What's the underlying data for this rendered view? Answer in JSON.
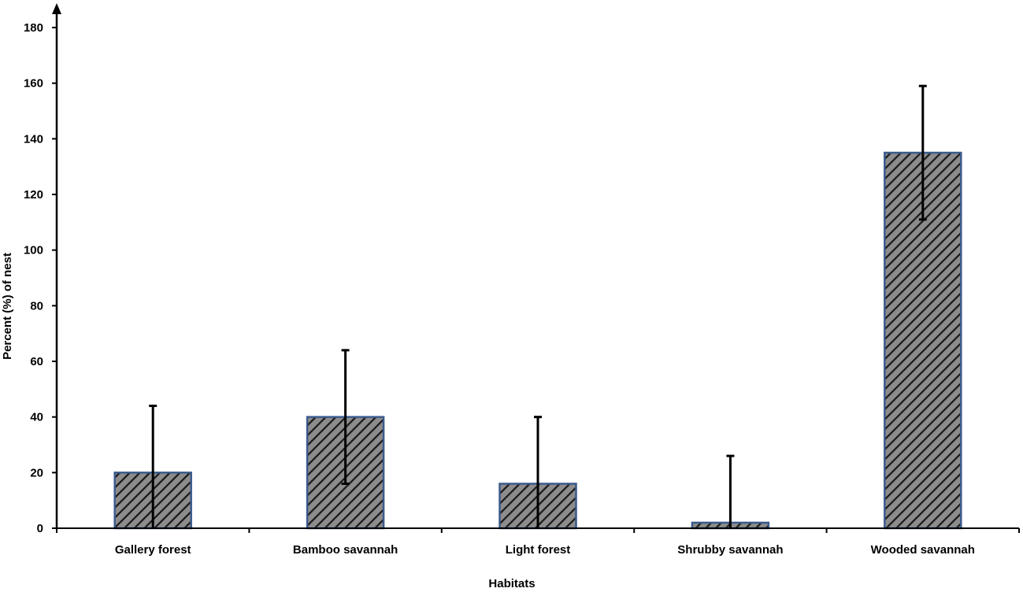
{
  "chart_data": {
    "type": "bar",
    "title": "",
    "xlabel": "Habitats",
    "ylabel": "Percent (%) of nest",
    "categories": [
      "Gallery forest",
      "Bamboo savannah",
      "Light forest",
      "Shrubby savannah",
      "Wooded savannah"
    ],
    "values": [
      20,
      40,
      16,
      2,
      135
    ],
    "error": [
      24,
      24,
      24,
      24,
      24
    ],
    "ylim": [
      0,
      180
    ],
    "yticks": [
      0,
      20,
      40,
      60,
      80,
      100,
      120,
      140,
      160,
      180
    ],
    "grid": false,
    "legend": "none",
    "colors": {
      "bar_fill": "#8c8c8c",
      "bar_hatch": "#1a1a1a",
      "bar_edge": "#3b5b8c",
      "axis": "#000000"
    }
  }
}
